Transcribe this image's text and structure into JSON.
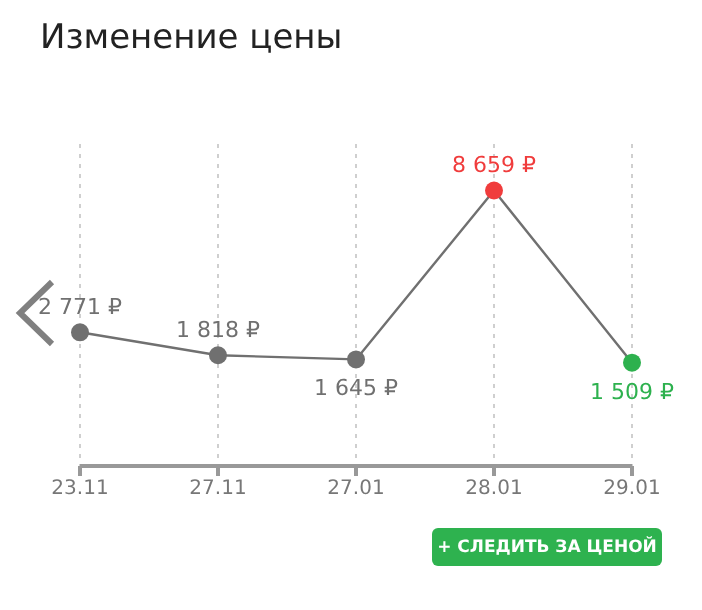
{
  "chart_data": {
    "type": "line",
    "title": "Изменение цены",
    "categories": [
      "23.11",
      "27.11",
      "27.01",
      "28.01",
      "29.01"
    ],
    "series": [
      {
        "color": "#707070",
        "values": [
          2771,
          1818,
          1645,
          8659,
          1509
        ],
        "colors": [
          "#707070",
          "#707070",
          "#707070",
          "#f03c3c",
          "#2db14e"
        ],
        "value_labels": [
          "2 771 ₽",
          "1 818 ₽",
          "1 645 ₽",
          "8 659 ₽",
          "1 509 ₽"
        ]
      }
    ],
    "grid": "x",
    "marker": "circle",
    "legend": false,
    "annotations": [
      "+ СЛЕДИТЬ ЗА ЦЕНОЙ"
    ]
  }
}
